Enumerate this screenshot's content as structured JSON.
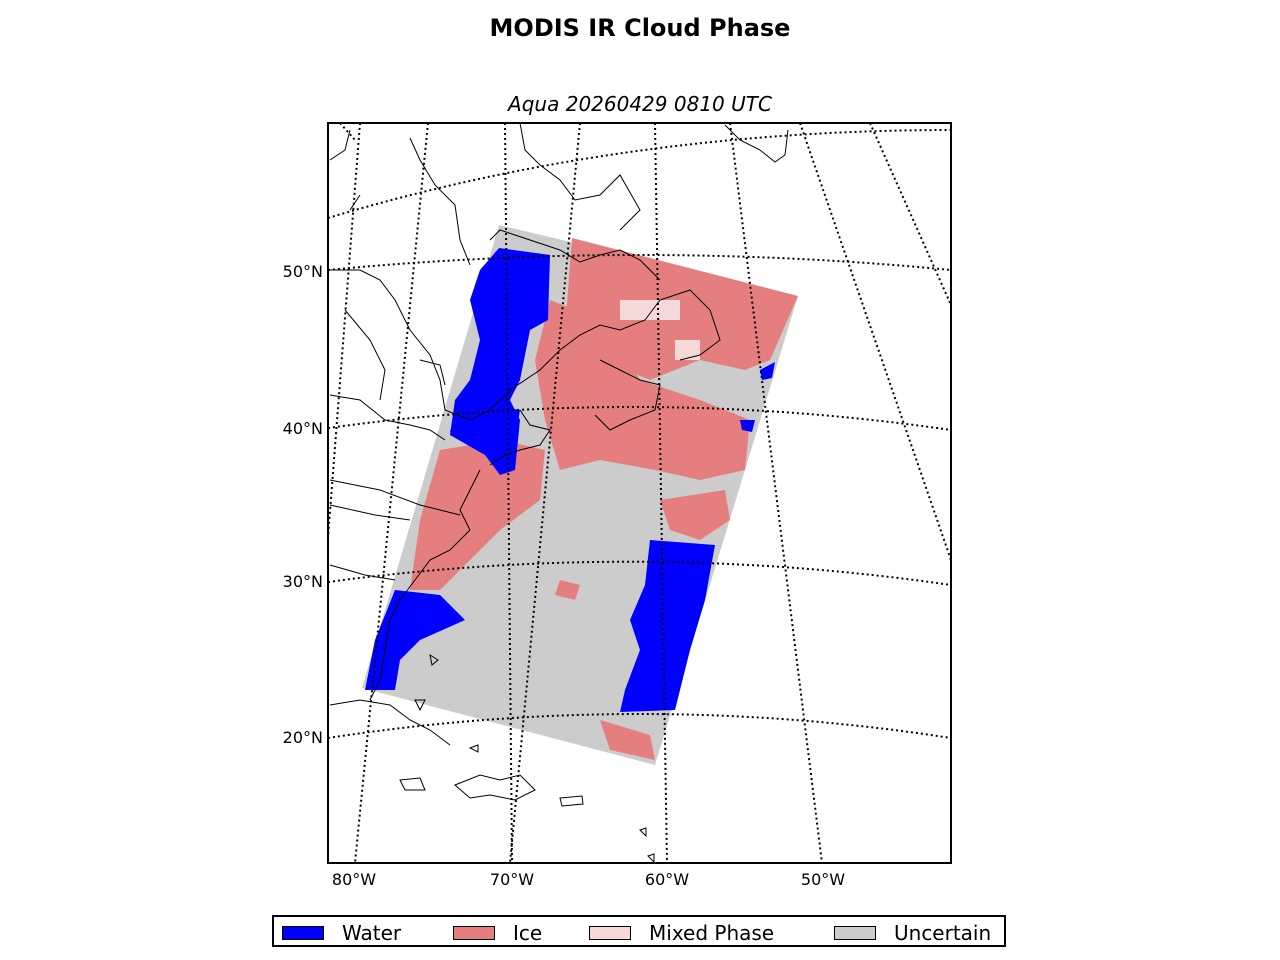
{
  "title": "MODIS IR Cloud Phase",
  "subtitle": "Aqua 20260429 0810 UTC",
  "lat_labels": [
    "50°N",
    "40°N",
    "30°N",
    "20°N"
  ],
  "lon_labels": [
    "80°W",
    "70°W",
    "60°W",
    "50°W"
  ],
  "legend": [
    {
      "label": "Water",
      "color": "#0000ff"
    },
    {
      "label": "Ice",
      "color": "#e57f7f"
    },
    {
      "label": "Mixed Phase",
      "color": "#f5d8d8"
    },
    {
      "label": "Uncertain",
      "color": "#cccccc"
    }
  ],
  "colors": {
    "water": "#0000ff",
    "ice": "#e57f7f",
    "mixed": "#f5d8d8",
    "uncertain": "#cccccc"
  }
}
